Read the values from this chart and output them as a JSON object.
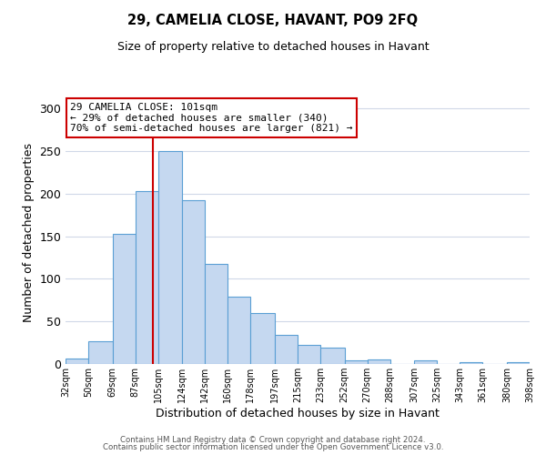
{
  "title": "29, CAMELIA CLOSE, HAVANT, PO9 2FQ",
  "subtitle": "Size of property relative to detached houses in Havant",
  "xlabel": "Distribution of detached houses by size in Havant",
  "ylabel": "Number of detached properties",
  "bar_heights": [
    6,
    27,
    153,
    203,
    250,
    192,
    118,
    79,
    60,
    34,
    22,
    19,
    4,
    5,
    0,
    4,
    0,
    2,
    0,
    2
  ],
  "bin_edges": [
    32,
    50,
    69,
    87,
    105,
    124,
    142,
    160,
    178,
    197,
    215,
    233,
    252,
    270,
    288,
    307,
    325,
    343,
    361,
    380,
    398
  ],
  "bar_color": "#c5d8f0",
  "bar_edge_color": "#5a9fd4",
  "vline_x": 101,
  "vline_color": "#cc0000",
  "ylim": [
    0,
    310
  ],
  "yticks": [
    0,
    50,
    100,
    150,
    200,
    250,
    300
  ],
  "xtick_labels": [
    "32sqm",
    "50sqm",
    "69sqm",
    "87sqm",
    "105sqm",
    "124sqm",
    "142sqm",
    "160sqm",
    "178sqm",
    "197sqm",
    "215sqm",
    "233sqm",
    "252sqm",
    "270sqm",
    "288sqm",
    "307sqm",
    "325sqm",
    "343sqm",
    "361sqm",
    "380sqm",
    "398sqm"
  ],
  "annotation_text": "29 CAMELIA CLOSE: 101sqm\n← 29% of detached houses are smaller (340)\n70% of semi-detached houses are larger (821) →",
  "annotation_box_color": "#ffffff",
  "annotation_box_edge_color": "#cc0000",
  "footer_line1": "Contains HM Land Registry data © Crown copyright and database right 2024.",
  "footer_line2": "Contains public sector information licensed under the Open Government Licence v3.0.",
  "background_color": "#ffffff",
  "grid_color": "#d0d8e8"
}
